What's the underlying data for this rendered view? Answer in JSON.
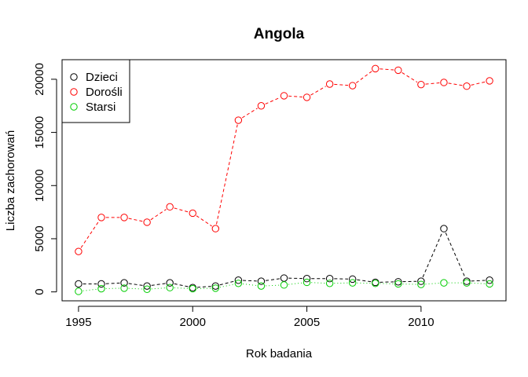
{
  "chart_data": {
    "type": "line",
    "title": "Angola",
    "xlabel": "Rok badania",
    "ylabel": "Liczba zachorowań",
    "x": [
      1995,
      1996,
      1997,
      1998,
      1999,
      2000,
      2001,
      2002,
      2003,
      2004,
      2005,
      2006,
      2007,
      2008,
      2009,
      2010,
      2011,
      2012,
      2013
    ],
    "xlim": [
      1994.28,
      2013.72
    ],
    "ylim": [
      -840,
      21840
    ],
    "x_ticks": [
      1995,
      2000,
      2005,
      2010
    ],
    "y_ticks": [
      0,
      5000,
      10000,
      15000,
      20000
    ],
    "grid": false,
    "legend_position": "top-left",
    "series": [
      {
        "name": "Dzieci",
        "color": "#000000",
        "linestyle": "dashed",
        "values": [
          750,
          750,
          850,
          550,
          850,
          400,
          550,
          1100,
          1000,
          1300,
          1250,
          1250,
          1200,
          900,
          950,
          1000,
          5950,
          1000,
          1100
        ]
      },
      {
        "name": "Dorośli",
        "color": "#ff0000",
        "linestyle": "dashed",
        "values": [
          3800,
          7000,
          7000,
          6550,
          8000,
          7400,
          5950,
          16150,
          17500,
          18450,
          18300,
          19550,
          19400,
          21000,
          20850,
          19500,
          19700,
          19350,
          19850
        ]
      },
      {
        "name": "Starsi",
        "color": "#00cd00",
        "linestyle": "dotted",
        "values": [
          50,
          300,
          350,
          250,
          400,
          300,
          350,
          800,
          550,
          650,
          900,
          800,
          850,
          800,
          750,
          700,
          850,
          850,
          750
        ]
      }
    ]
  }
}
